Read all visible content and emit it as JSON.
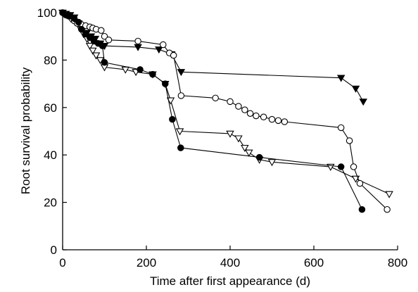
{
  "chart_data": {
    "type": "line",
    "xlabel": "Time after first appearance (d)",
    "ylabel": "Root survival probability",
    "xlim": [
      0,
      800
    ],
    "ylim": [
      0,
      100
    ],
    "xticks": [
      0,
      200,
      400,
      600,
      800
    ],
    "yticks": [
      0,
      20,
      40,
      60,
      80,
      100
    ],
    "xtick_labels": [
      "0",
      "200",
      "400",
      "600",
      "800"
    ],
    "ytick_labels": [
      "0",
      "20",
      "40",
      "60",
      "80",
      "100"
    ],
    "grid": false,
    "legend": "none",
    "series": [
      {
        "marker": "open-circle",
        "points": [
          [
            0,
            100
          ],
          [
            5,
            99.5
          ],
          [
            10,
            99
          ],
          [
            15,
            98.5
          ],
          [
            22,
            97.5
          ],
          [
            28,
            96.5
          ],
          [
            35,
            95.5
          ],
          [
            45,
            95
          ],
          [
            55,
            94.5
          ],
          [
            65,
            94
          ],
          [
            72,
            93.5
          ],
          [
            80,
            93
          ],
          [
            92,
            92.5
          ],
          [
            100,
            90
          ],
          [
            110,
            88.5
          ],
          [
            180,
            88
          ],
          [
            240,
            86.5
          ],
          [
            255,
            83
          ],
          [
            265,
            82
          ],
          [
            283,
            65
          ],
          [
            365,
            64
          ],
          [
            400,
            62.5
          ],
          [
            420,
            60.5
          ],
          [
            435,
            59
          ],
          [
            448,
            57.5
          ],
          [
            462,
            56.5
          ],
          [
            480,
            56
          ],
          [
            500,
            55
          ],
          [
            515,
            54.5
          ],
          [
            530,
            54
          ],
          [
            665,
            51.5
          ],
          [
            685,
            46
          ],
          [
            695,
            35
          ],
          [
            710,
            28
          ],
          [
            775,
            17
          ]
        ]
      },
      {
        "marker": "filled-circle",
        "points": [
          [
            0,
            100
          ],
          [
            8,
            99
          ],
          [
            18,
            98.5
          ],
          [
            28,
            97.5
          ],
          [
            38,
            96
          ],
          [
            45,
            93
          ],
          [
            55,
            91
          ],
          [
            65,
            89.5
          ],
          [
            75,
            88
          ],
          [
            85,
            87
          ],
          [
            95,
            86
          ],
          [
            100,
            79
          ],
          [
            185,
            76
          ],
          [
            215,
            74
          ],
          [
            245,
            70
          ],
          [
            262,
            55
          ],
          [
            282,
            43
          ],
          [
            470,
            39
          ],
          [
            665,
            35
          ],
          [
            715,
            17
          ]
        ]
      },
      {
        "marker": "filled-triangle-down",
        "points": [
          [
            0,
            100
          ],
          [
            8,
            99.5
          ],
          [
            18,
            99
          ],
          [
            28,
            98
          ],
          [
            38,
            95.5
          ],
          [
            48,
            93
          ],
          [
            58,
            91.5
          ],
          [
            68,
            90
          ],
          [
            78,
            89
          ],
          [
            90,
            87
          ],
          [
            100,
            86
          ],
          [
            180,
            85.5
          ],
          [
            230,
            84.5
          ],
          [
            260,
            82.5
          ],
          [
            283,
            75
          ],
          [
            665,
            72.5
          ],
          [
            700,
            68
          ],
          [
            718,
            62.5
          ]
        ]
      },
      {
        "marker": "open-triangle-down",
        "points": [
          [
            0,
            100
          ],
          [
            10,
            99
          ],
          [
            20,
            97.5
          ],
          [
            30,
            96
          ],
          [
            40,
            94
          ],
          [
            50,
            91
          ],
          [
            58,
            89
          ],
          [
            65,
            86
          ],
          [
            72,
            84
          ],
          [
            80,
            82
          ],
          [
            90,
            80
          ],
          [
            100,
            77
          ],
          [
            150,
            76
          ],
          [
            175,
            75
          ],
          [
            215,
            74
          ],
          [
            245,
            70
          ],
          [
            258,
            63
          ],
          [
            280,
            50
          ],
          [
            400,
            49
          ],
          [
            420,
            47
          ],
          [
            435,
            43
          ],
          [
            445,
            41
          ],
          [
            470,
            38
          ],
          [
            500,
            37
          ],
          [
            640,
            35
          ],
          [
            700,
            30
          ],
          [
            780,
            23.5
          ]
        ]
      }
    ]
  }
}
